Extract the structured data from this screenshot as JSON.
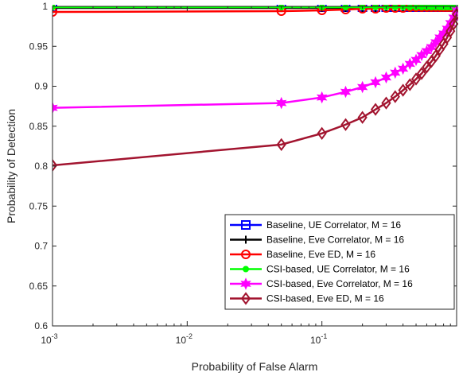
{
  "chart_data": {
    "type": "line",
    "xlabel": "Probability of False Alarm",
    "ylabel": "Probability of Detection",
    "xscale": "log",
    "xlim": [
      0.001,
      1
    ],
    "ylim": [
      0.6,
      1
    ],
    "xticks": [
      {
        "value": 0.001,
        "base": "10",
        "exp": "-3"
      },
      {
        "value": 0.01,
        "base": "10",
        "exp": "-2"
      },
      {
        "value": 0.1,
        "base": "10",
        "exp": "-1"
      }
    ],
    "yticks": [
      0.6,
      0.65,
      0.7,
      0.75,
      0.8,
      0.85,
      0.9,
      0.95,
      1
    ],
    "ytick_labels": [
      "0.6",
      "0.65",
      "0.7",
      "0.75",
      "0.8",
      "0.85",
      "0.9",
      "0.95",
      "1"
    ],
    "grid": false,
    "legend_position": "bottom-right",
    "series": [
      {
        "name": "Baseline, UE Correlator, M = 16",
        "color": "#0000FF",
        "marker": "square",
        "x": [
          0.001,
          0.05,
          0.1,
          0.15,
          0.2,
          0.25,
          0.3,
          0.35,
          0.4,
          0.45,
          0.5,
          0.55,
          0.6,
          0.65,
          0.7,
          0.75,
          0.8,
          0.85,
          0.9,
          0.95,
          1
        ],
        "y": [
          0.999,
          0.999,
          0.999,
          0.999,
          0.999,
          0.999,
          0.999,
          0.999,
          0.999,
          0.999,
          0.999,
          0.999,
          0.999,
          0.999,
          0.999,
          0.999,
          0.999,
          0.999,
          0.999,
          0.999,
          1
        ]
      },
      {
        "name": "Baseline, Eve Correlator, M = 16",
        "color": "#000000",
        "marker": "plus",
        "x": [
          0.001,
          0.05,
          0.1,
          0.15,
          0.2,
          0.25,
          0.3,
          0.35,
          0.4,
          0.45,
          0.5,
          0.55,
          0.6,
          0.65,
          0.7,
          0.75,
          0.8,
          0.85,
          0.9,
          0.95,
          1
        ],
        "y": [
          0.998,
          0.998,
          0.998,
          0.998,
          0.998,
          0.998,
          0.998,
          0.998,
          0.998,
          0.998,
          0.998,
          0.999,
          0.999,
          0.999,
          0.999,
          0.999,
          0.999,
          0.999,
          0.999,
          0.999,
          1
        ]
      },
      {
        "name": "Baseline, Eve ED, M = 16",
        "color": "#FF0000",
        "marker": "circle",
        "x": [
          0.001,
          0.05,
          0.1,
          0.15,
          0.2,
          0.25,
          0.3,
          0.35,
          0.4,
          0.45,
          0.5,
          0.55,
          0.6,
          0.65,
          0.7,
          0.75,
          0.8,
          0.85,
          0.9,
          0.95,
          1
        ],
        "y": [
          0.993,
          0.994,
          0.995,
          0.996,
          0.997,
          0.997,
          0.998,
          0.998,
          0.998,
          0.999,
          0.999,
          0.999,
          0.999,
          0.999,
          0.999,
          0.999,
          0.999,
          0.999,
          0.999,
          1.0,
          1
        ]
      },
      {
        "name": "CSI-based, UE Correlator, M = 16",
        "color": "#00FF00",
        "marker": "dot",
        "x": [
          0.001,
          0.05,
          0.1,
          0.15,
          0.2,
          0.25,
          0.3,
          0.35,
          0.4,
          0.45,
          0.5,
          0.55,
          0.6,
          0.65,
          0.7,
          0.75,
          0.8,
          0.85,
          0.9,
          0.95,
          1
        ],
        "y": [
          0.999,
          0.999,
          0.999,
          0.999,
          0.999,
          0.999,
          0.999,
          0.999,
          0.999,
          0.999,
          0.999,
          0.999,
          0.999,
          0.999,
          0.999,
          0.999,
          0.999,
          0.999,
          0.999,
          0.999,
          1
        ]
      },
      {
        "name": "CSI-based, Eve Correlator, M = 16",
        "color": "#FF00FF",
        "marker": "hexagram",
        "x": [
          0.001,
          0.05,
          0.1,
          0.15,
          0.2,
          0.25,
          0.3,
          0.35,
          0.4,
          0.45,
          0.5,
          0.55,
          0.6,
          0.65,
          0.7,
          0.75,
          0.8,
          0.85,
          0.9,
          0.95,
          1
        ],
        "y": [
          0.873,
          0.879,
          0.886,
          0.893,
          0.899,
          0.905,
          0.911,
          0.917,
          0.922,
          0.928,
          0.933,
          0.939,
          0.944,
          0.949,
          0.955,
          0.961,
          0.966,
          0.972,
          0.979,
          0.986,
          0.995
        ]
      },
      {
        "name": "CSI-based, Eve ED, M = 16",
        "color": "#A2142F",
        "marker": "diamond",
        "x": [
          0.001,
          0.05,
          0.1,
          0.15,
          0.2,
          0.25,
          0.3,
          0.35,
          0.4,
          0.45,
          0.5,
          0.55,
          0.6,
          0.65,
          0.7,
          0.75,
          0.8,
          0.85,
          0.9,
          0.95,
          1
        ],
        "y": [
          0.801,
          0.827,
          0.841,
          0.852,
          0.861,
          0.871,
          0.879,
          0.887,
          0.895,
          0.902,
          0.909,
          0.916,
          0.924,
          0.931,
          0.938,
          0.946,
          0.953,
          0.961,
          0.969,
          0.978,
          0.99
        ]
      }
    ]
  }
}
